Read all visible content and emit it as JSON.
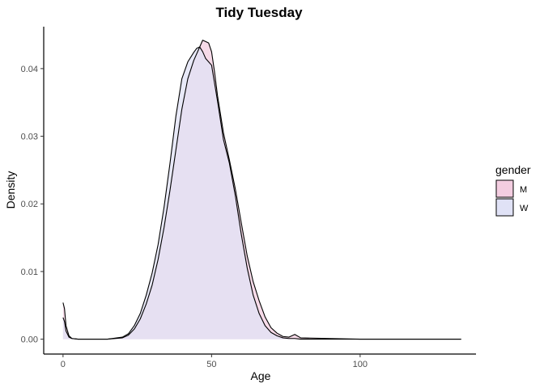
{
  "chart_data": {
    "type": "area",
    "title": "Tidy Tuesday",
    "xlabel": "Age",
    "ylabel": "Density",
    "xlim": [
      -6.5,
      139
    ],
    "ylim": [
      -0.0022,
      0.0462
    ],
    "x_ticks": [
      0,
      50,
      100
    ],
    "x_tick_labels": [
      "0",
      "50",
      "100"
    ],
    "y_ticks": [
      0,
      0.01,
      0.02,
      0.03,
      0.04
    ],
    "y_tick_labels": [
      "0.00",
      "0.01",
      "0.02",
      "0.03",
      "0.04"
    ],
    "grid": false,
    "legend": {
      "title": "gender",
      "position": "right"
    },
    "series": [
      {
        "name": "M",
        "color": "#f3cde0",
        "x": [
          0,
          0.5,
          1,
          2,
          3,
          5,
          10,
          15,
          20,
          22,
          24,
          26,
          28,
          30,
          32,
          34,
          36,
          38,
          40,
          42,
          44,
          46,
          47,
          48,
          49,
          50,
          51,
          52,
          54,
          56,
          58,
          60,
          62,
          64,
          66,
          68,
          70,
          72,
          74,
          76,
          78,
          80,
          90,
          100,
          110,
          120,
          134
        ],
        "y": [
          0.0054,
          0.0045,
          0.002,
          0.0005,
          0.0001,
          0.0,
          0.0,
          0.0,
          0.0002,
          0.0006,
          0.0015,
          0.003,
          0.0052,
          0.008,
          0.0118,
          0.0165,
          0.022,
          0.028,
          0.034,
          0.0385,
          0.0412,
          0.0432,
          0.0442,
          0.044,
          0.0438,
          0.0425,
          0.0395,
          0.036,
          0.0305,
          0.0265,
          0.0222,
          0.0172,
          0.0123,
          0.0085,
          0.0057,
          0.0033,
          0.0017,
          0.0009,
          0.0004,
          0.0003,
          0.0007,
          0.0002,
          0.0001,
          0.0,
          0.0,
          0.0,
          0.0
        ]
      },
      {
        "name": "W",
        "color": "#e0e2f6",
        "x": [
          0,
          0.5,
          1,
          2,
          3,
          5,
          10,
          15,
          20,
          22,
          24,
          26,
          28,
          30,
          32,
          34,
          36,
          38,
          40,
          42,
          44,
          45,
          46,
          47,
          48,
          49,
          50,
          52,
          54,
          56,
          58,
          60,
          62,
          64,
          66,
          68,
          70,
          72,
          74,
          76,
          78,
          80,
          90,
          100,
          110,
          120,
          134
        ],
        "y": [
          0.0032,
          0.0026,
          0.0012,
          0.0003,
          0.0001,
          0.0,
          0.0,
          0.0,
          0.0003,
          0.0008,
          0.002,
          0.0038,
          0.0065,
          0.0098,
          0.014,
          0.0195,
          0.026,
          0.033,
          0.0385,
          0.041,
          0.0424,
          0.043,
          0.0432,
          0.0425,
          0.0415,
          0.041,
          0.0405,
          0.0352,
          0.0295,
          0.026,
          0.0212,
          0.0155,
          0.0105,
          0.0065,
          0.0038,
          0.002,
          0.001,
          0.0005,
          0.0002,
          0.0001,
          0.0001,
          0.0,
          0.0,
          0.0,
          0.0,
          0.0,
          0.0
        ]
      }
    ]
  }
}
